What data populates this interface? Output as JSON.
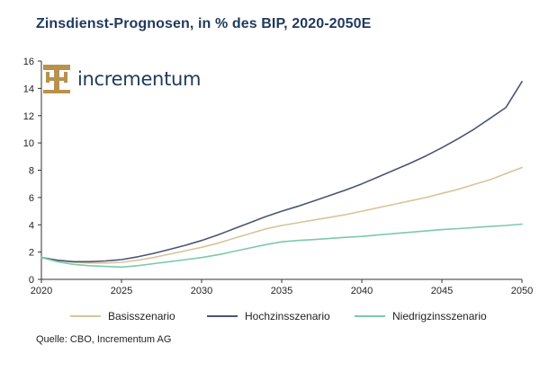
{
  "title": "Zinsdienst-Prognosen, in % des BIP, 2020-2050E",
  "logo": {
    "text": "incrementum"
  },
  "source": "Quelle: CBO, Incrementum AG",
  "colors": {
    "basis": "#d9c39a",
    "hoch": "#4a5575",
    "niedrig": "#7cc9ad",
    "axis": "#333333",
    "logo": "#b8914f"
  },
  "chart_data": {
    "type": "line",
    "title": "Zinsdienst-Prognosen, in % des BIP, 2020-2050E",
    "xlabel": "",
    "ylabel": "",
    "xlim": [
      2020,
      2050
    ],
    "ylim": [
      0,
      16
    ],
    "xticks": [
      "2020",
      "2025",
      "2030",
      "2035",
      "2040",
      "2045",
      "2050"
    ],
    "yticks": [
      "0",
      "2",
      "4",
      "6",
      "8",
      "10",
      "12",
      "14",
      "16"
    ],
    "grid": false,
    "legend_position": "bottom",
    "x": [
      2020,
      2021,
      2022,
      2023,
      2024,
      2025,
      2026,
      2027,
      2028,
      2029,
      2030,
      2031,
      2032,
      2033,
      2034,
      2035,
      2036,
      2037,
      2038,
      2039,
      2040,
      2041,
      2042,
      2043,
      2044,
      2045,
      2046,
      2047,
      2048,
      2049,
      2050
    ],
    "series": [
      {
        "name": "Basisszenario",
        "key": "basis",
        "values": [
          1.6,
          1.4,
          1.25,
          1.2,
          1.2,
          1.25,
          1.4,
          1.6,
          1.85,
          2.1,
          2.35,
          2.65,
          3.0,
          3.35,
          3.7,
          3.95,
          4.15,
          4.35,
          4.55,
          4.75,
          5.0,
          5.25,
          5.5,
          5.75,
          6.0,
          6.3,
          6.6,
          6.95,
          7.3,
          7.75,
          8.2
        ]
      },
      {
        "name": "Hochzinsszenario",
        "key": "hoch",
        "values": [
          1.6,
          1.4,
          1.3,
          1.3,
          1.35,
          1.45,
          1.65,
          1.9,
          2.2,
          2.5,
          2.85,
          3.25,
          3.7,
          4.15,
          4.6,
          5.0,
          5.35,
          5.75,
          6.15,
          6.55,
          7.0,
          7.5,
          8.0,
          8.5,
          9.05,
          9.65,
          10.3,
          11.0,
          11.8,
          12.6,
          14.5
        ]
      },
      {
        "name": "Niedrigzinsszenario",
        "key": "niedrig",
        "values": [
          1.6,
          1.3,
          1.1,
          1.0,
          0.95,
          0.9,
          1.0,
          1.15,
          1.3,
          1.45,
          1.6,
          1.8,
          2.05,
          2.3,
          2.55,
          2.75,
          2.85,
          2.92,
          3.0,
          3.08,
          3.15,
          3.25,
          3.35,
          3.45,
          3.55,
          3.65,
          3.72,
          3.8,
          3.88,
          3.95,
          4.05
        ]
      }
    ]
  }
}
